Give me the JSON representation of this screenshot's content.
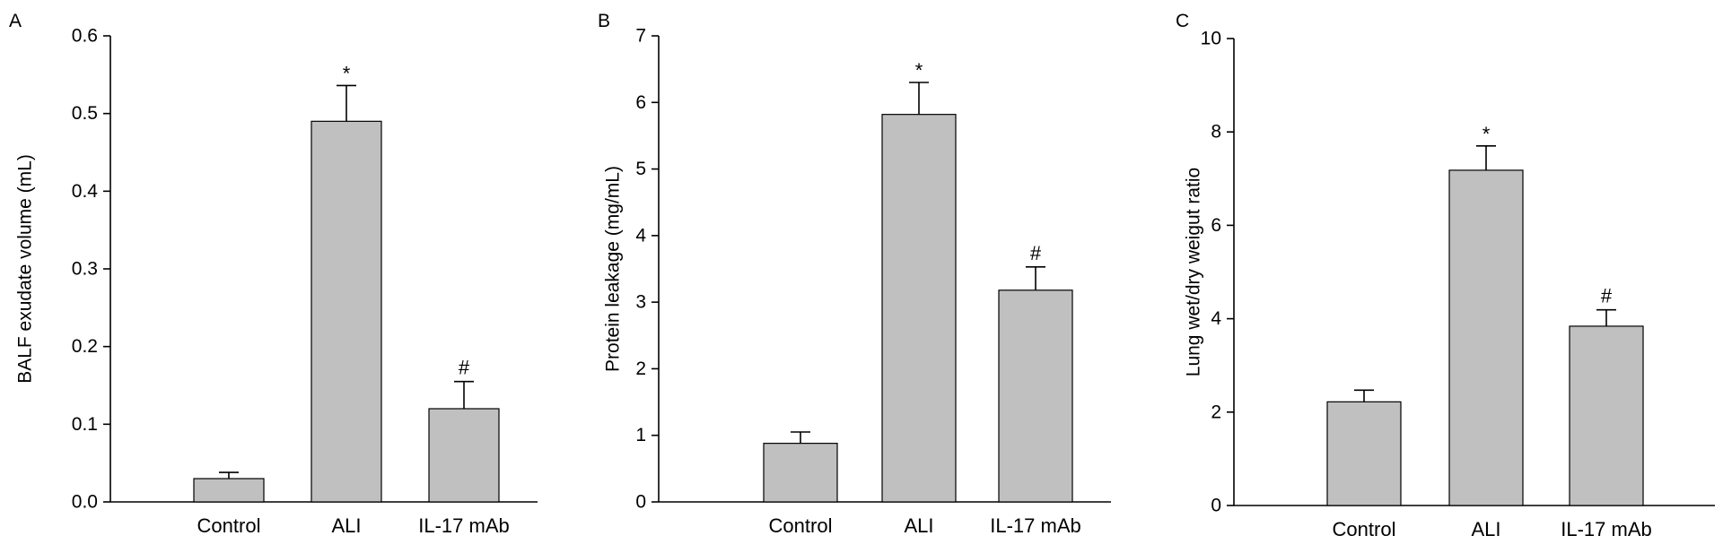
{
  "colors": {
    "bar": "#c0c0c0",
    "axis": "#000000"
  },
  "chart_data": [
    {
      "panel": "A",
      "type": "bar",
      "title": "",
      "xlabel": "",
      "ylabel": "BALF exudate volume (mL)",
      "ylim": [
        0,
        0.6
      ],
      "yticks": [
        0.0,
        0.1,
        0.2,
        0.3,
        0.4,
        0.5,
        0.6
      ],
      "ytick_labels": [
        "0.0",
        "0.1",
        "0.2",
        "0.3",
        "0.4",
        "0.5",
        "0.6"
      ],
      "categories": [
        "Control",
        "ALI",
        "IL-17 mAb"
      ],
      "values": [
        0.03,
        0.49,
        0.12
      ],
      "errors": [
        0.008,
        0.046,
        0.035
      ],
      "annotations": [
        "",
        "*",
        "#"
      ]
    },
    {
      "panel": "B",
      "type": "bar",
      "title": "",
      "xlabel": "",
      "ylabel": "Protein leakage (mg/mL)",
      "ylim": [
        0,
        7
      ],
      "yticks": [
        0,
        1,
        2,
        3,
        4,
        5,
        6,
        7
      ],
      "ytick_labels": [
        "0",
        "1",
        "2",
        "3",
        "4",
        "5",
        "6",
        "7"
      ],
      "categories": [
        "Control",
        "ALI",
        "IL-17 mAb"
      ],
      "values": [
        0.88,
        5.82,
        3.18
      ],
      "errors": [
        0.17,
        0.48,
        0.35
      ],
      "annotations": [
        "",
        "*",
        "#"
      ]
    },
    {
      "panel": "C",
      "type": "bar",
      "title": "",
      "xlabel": "",
      "ylabel": "Lung wet/dry weigut ratio",
      "ylim": [
        0,
        10
      ],
      "yticks": [
        0,
        2,
        4,
        6,
        8,
        10
      ],
      "ytick_labels": [
        "0",
        "2",
        "4",
        "6",
        "8",
        "10"
      ],
      "categories": [
        "Control",
        "ALI",
        "IL-17 mAb"
      ],
      "values": [
        2.22,
        7.18,
        3.84
      ],
      "errors": [
        0.25,
        0.52,
        0.35
      ],
      "annotations": [
        "",
        "*",
        "#"
      ]
    }
  ]
}
